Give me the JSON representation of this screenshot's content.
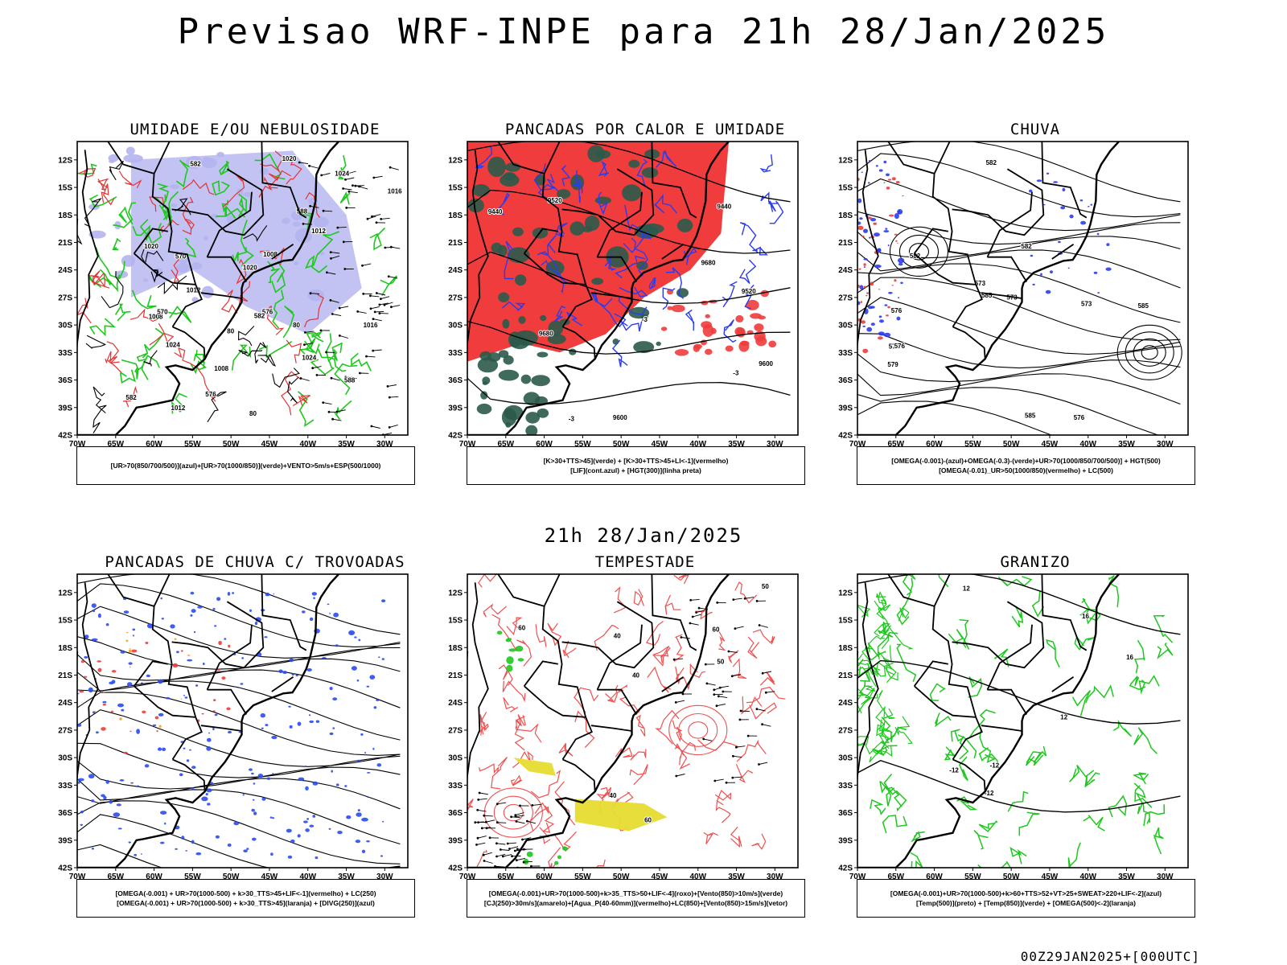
{
  "title": "Previsao WRF-INPE  para 21h 28/Jan/2025",
  "subtitle": "21h 28/Jan/2025",
  "footer": "00Z29JAN2025+[000UTC]",
  "axes": {
    "lat_labels": [
      "12S",
      "15S",
      "18S",
      "21S",
      "24S",
      "27S",
      "30S",
      "33S",
      "36S",
      "39S",
      "42S"
    ],
    "lon_labels": [
      "70W",
      "65W",
      "60W",
      "55W",
      "50W",
      "45W",
      "40W",
      "35W",
      "30W"
    ]
  },
  "panels": [
    {
      "title": "UMIDADE E/OU NEBULOSIDADE",
      "legend": [
        "[UR>70(850/700/500)](azul)+[UR>70(1000/850)](verde)+VENTO>5m/s+ESP(500/1000)"
      ],
      "contour_labels": [
        "1008",
        "1012",
        "1016",
        "1020",
        "1024",
        "570",
        "576",
        "582",
        "588",
        "80"
      ],
      "colors": {
        "blue_area": "#b4b4f0",
        "green": "#1ec81e",
        "red": "#e63232"
      }
    },
    {
      "title": "PANCADAS POR CALOR E UMIDADE",
      "legend": [
        "[K>30+TTS>45](verde) + [K>30+TTS>45+LI<-1](vermelho)",
        "[LIF](cont.azul) + [HGT(300)](linha preta)"
      ],
      "contour_labels": [
        "9680",
        "9600",
        "9520",
        "9440",
        "-3"
      ],
      "colors": {
        "red_area": "#f03c3c",
        "green_area": "#2a5a4a",
        "blue": "#2a3cf0"
      }
    },
    {
      "title": "CHUVA",
      "legend": [
        "[OMEGA(-0.001)-(azul)+OMEGA(-0.3)-(verde)+UR>70(1000/850/700/500)] + HGT(500)",
        "[OMEGA(-0.01)_UR>50(1000/850)(vermelho) + LC(500)"
      ],
      "contour_labels": [
        "585",
        "582",
        "579",
        "576",
        "573"
      ],
      "colors": {
        "blue": "#2a3cf0",
        "red": "#f03c3c"
      }
    },
    {
      "title": "PANCADAS DE CHUVA C/ TROVOADAS",
      "legend": [
        "[OMEGA(-0.001) + UR>70(1000-500) + k>30_TTS>45+LIF<-1](vermelho) + LC(250)",
        "[OMEGA(-0.001) + UR>70(1000-500) + k>30_TTS>45](laranja) + [DIVG(250)](azul)"
      ],
      "contour_labels": [],
      "colors": {
        "blue": "#2a4cf0",
        "red": "#f03c3c",
        "orange": "#f0a028"
      }
    },
    {
      "title": "TEMPESTADE",
      "legend": [
        "[OMEGA(-0.001)+UR>70(1000-500)+k>35_TTS>50+LIF<-4](roxo)+[Vento(850)>10m/s](verde)",
        "[CJ(250)>30m/s](amarelo)+[Agua_P(40-60mm)](vermelho)+LC(850)+[Vento(850)>15m/s](vetor)"
      ],
      "contour_labels": [
        "40",
        "50",
        "60"
      ],
      "colors": {
        "red": "#f05050",
        "yellow": "#e6dc32",
        "green": "#1ec81e"
      }
    },
    {
      "title": "GRANIZO",
      "legend": [
        "[OMEGA(-0.001)+UR>70(1000-500)+k>60+TTS>52+VT>25+SWEAT>220+LIF<-2](azul)",
        "[Temp(500)](preto) + [Temp(850)](verde) + [OMEGA(500)<-2](laranja)"
      ],
      "contour_labels": [
        "16",
        "12",
        "-12"
      ],
      "colors": {
        "green": "#1ec81e",
        "black": "#000000"
      }
    }
  ]
}
